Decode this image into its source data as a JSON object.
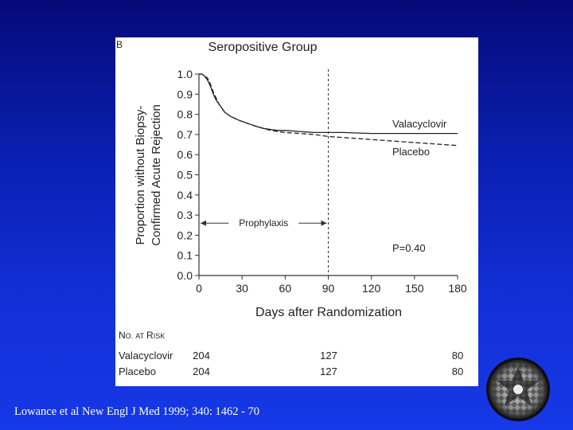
{
  "slide": {
    "citation": "Lowance et al New Engl J Med 1999; 340: 1462 - 70",
    "background_color": "#0a1fb0",
    "decorative_image": "circle-limit-tessellation-icon"
  },
  "chart_data": {
    "type": "line",
    "panel_label": "B",
    "title": "Seropositive Group",
    "xlabel": "Days after Randomization",
    "ylabel": [
      "Proportion without Biopsy-",
      "Confirmed Acute Rejection"
    ],
    "xlim": [
      0,
      180
    ],
    "ylim": [
      0,
      1.0
    ],
    "x_ticks": [
      0,
      30,
      60,
      90,
      120,
      150,
      180
    ],
    "y_ticks": [
      "0.0",
      "0.1",
      "0.2",
      "0.3",
      "0.4",
      "0.5",
      "0.6",
      "0.7",
      "0.8",
      "0.9",
      "1.0"
    ],
    "grid": false,
    "series": [
      {
        "name": "Valacyclovir",
        "line_style": "solid",
        "x": [
          0,
          2,
          4,
          6,
          8,
          10,
          12,
          14,
          16,
          18,
          20,
          22,
          25,
          28,
          32,
          36,
          40,
          45,
          50,
          55,
          60,
          70,
          80,
          90,
          100,
          120,
          140,
          160,
          180
        ],
        "y": [
          1.0,
          1.0,
          0.99,
          0.97,
          0.94,
          0.9,
          0.87,
          0.85,
          0.83,
          0.81,
          0.8,
          0.79,
          0.78,
          0.77,
          0.76,
          0.75,
          0.74,
          0.73,
          0.725,
          0.72,
          0.72,
          0.715,
          0.71,
          0.71,
          0.71,
          0.705,
          0.705,
          0.705,
          0.705
        ]
      },
      {
        "name": "Placebo",
        "line_style": "dashed",
        "x": [
          0,
          2,
          4,
          6,
          8,
          10,
          12,
          14,
          16,
          18,
          20,
          22,
          25,
          28,
          32,
          36,
          40,
          45,
          50,
          55,
          60,
          70,
          80,
          90,
          100,
          120,
          140,
          160,
          175,
          180
        ],
        "y": [
          1.0,
          1.0,
          0.99,
          0.98,
          0.95,
          0.91,
          0.88,
          0.85,
          0.83,
          0.81,
          0.8,
          0.79,
          0.78,
          0.77,
          0.76,
          0.75,
          0.74,
          0.73,
          0.72,
          0.715,
          0.71,
          0.705,
          0.7,
          0.69,
          0.685,
          0.675,
          0.665,
          0.655,
          0.648,
          0.645
        ]
      }
    ],
    "annotations": {
      "prophylaxis_label": "Prophylaxis",
      "prophylaxis_range": [
        0,
        90
      ],
      "prophylaxis_y": 0.26,
      "reference_line_x": 90,
      "p_value": "P=0.40"
    },
    "at_risk": {
      "header_prefix": "N",
      "header_prefix_small": "O.",
      "header_mid": "AT",
      "header_r": "R",
      "header_small": "ISK",
      "rows": [
        {
          "label": "Valacyclovir",
          "values": [
            "204",
            "127",
            "80"
          ]
        },
        {
          "label": "Placebo",
          "values": [
            "204",
            "127",
            "80"
          ]
        }
      ]
    }
  }
}
